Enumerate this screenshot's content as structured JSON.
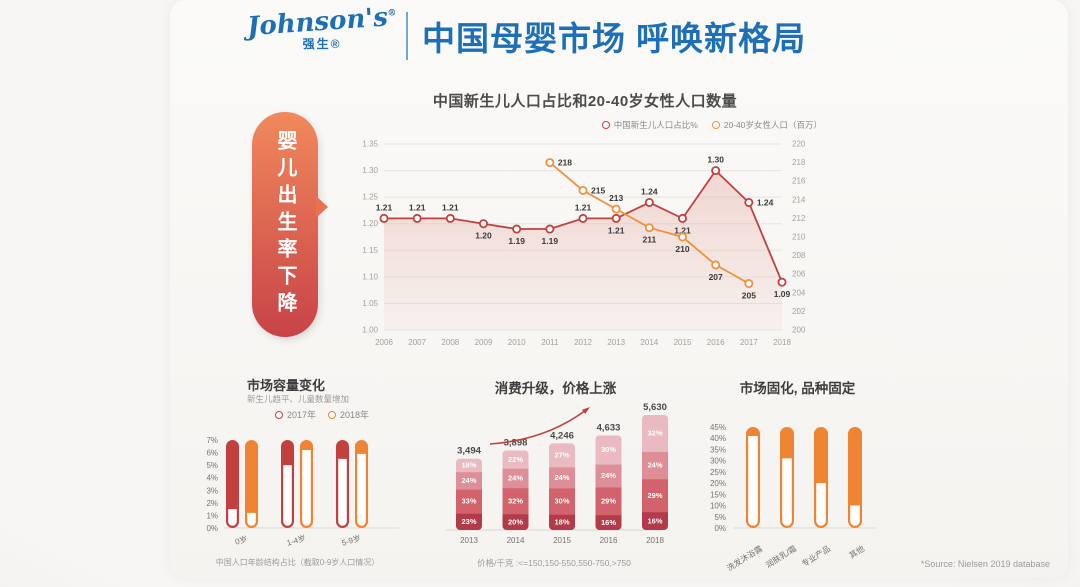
{
  "header": {
    "logo_script": "Johnson's",
    "logo_registered": "®",
    "logo_sub": "强生®",
    "title": "中国母婴市场 呼唤新格局"
  },
  "banner": {
    "text": "婴儿出生率下降"
  },
  "colors": {
    "brand_blue": "#1d70b7",
    "red": "#c2413f",
    "orange": "#ef8432",
    "orange_line": "#f0913c",
    "banner_top": "#f1895c",
    "banner_bottom": "#c84348"
  },
  "chart_data": [
    {
      "type": "line",
      "title": "中国新生儿人口占比和20-40岁女性人口数量",
      "legend": [
        {
          "label": "中国新生儿人口占比%",
          "color": "#c2413f"
        },
        {
          "label": "20-40岁女性人口（百万）",
          "color": "#f0913c"
        }
      ],
      "x": [
        "2006",
        "2007",
        "2008",
        "2009",
        "2010",
        "2011",
        "2012",
        "2013",
        "2014",
        "2015",
        "2016",
        "2017",
        "2018"
      ],
      "series": [
        {
          "name": "中国新生儿人口占比%",
          "axis": "left",
          "color": "#c2413f",
          "area": true,
          "values": [
            1.21,
            1.21,
            1.21,
            1.2,
            1.19,
            1.19,
            1.21,
            1.21,
            1.24,
            1.21,
            1.3,
            1.24,
            1.09
          ],
          "labels": [
            "1.21",
            "1.21",
            "1.21",
            "1.20",
            "1.19",
            "1.19",
            "1.21",
            "1.21",
            "1.24",
            "1.21",
            "1.30",
            "1.24",
            "1.09"
          ],
          "label_side": [
            "above",
            "above",
            "above",
            "below",
            "below",
            "below",
            "above",
            "below",
            "above",
            "below",
            "above",
            "right",
            "below"
          ]
        },
        {
          "name": "20-40岁女性人口（百万）",
          "axis": "right",
          "color": "#f0913c",
          "area": false,
          "values": [
            null,
            null,
            null,
            null,
            null,
            218,
            215,
            213,
            211,
            210,
            207,
            205,
            null
          ],
          "labels": [
            null,
            null,
            null,
            null,
            null,
            "218",
            "215",
            "213",
            "211",
            "210",
            "207",
            "205",
            null
          ],
          "label_side": [
            null,
            null,
            null,
            null,
            null,
            "right",
            "right",
            "above",
            "below",
            "below",
            "below",
            "below",
            null
          ]
        }
      ],
      "left_axis": {
        "min": 1.0,
        "max": 1.35,
        "ticks": [
          "1.35",
          "1.30",
          "1.25",
          "1.20",
          "1.15",
          "1.10",
          "1.05",
          "1.00"
        ]
      },
      "right_axis": {
        "min": 200,
        "max": 220,
        "ticks": [
          "220",
          "218",
          "216",
          "214",
          "212",
          "210",
          "208",
          "206",
          "204",
          "202",
          "200"
        ]
      },
      "grid": true,
      "legend_position": "top-right"
    },
    {
      "type": "bar",
      "style": "hollow-pill",
      "title": "市场容量变化",
      "subtitle": "新生儿趋平、儿童数量增加",
      "legend": [
        {
          "label": "2017年",
          "color": "#c2413f"
        },
        {
          "label": "2018年",
          "color": "#ef8432"
        }
      ],
      "categories": [
        "0岁",
        "1-4岁",
        "5-9岁"
      ],
      "series": [
        {
          "name": "2017年",
          "color": "#c2413f",
          "values": [
            1.5,
            5.0,
            5.5
          ]
        },
        {
          "name": "2018年",
          "color": "#ef8432",
          "values": [
            1.2,
            6.2,
            5.9
          ]
        }
      ],
      "ylim": [
        0,
        7
      ],
      "yticks": [
        "7%",
        "6%",
        "5%",
        "4%",
        "3%",
        "2%",
        "1%",
        "0%"
      ],
      "caption": "中国人口年龄结构占比（截取0-9岁人口情况）"
    },
    {
      "type": "stacked-bar",
      "title": "消费升级，价格上涨",
      "categories": [
        "2013",
        "2014",
        "2015",
        "2016",
        "2018"
      ],
      "totals": [
        "3,494",
        "3,898",
        "4,246",
        "4,633",
        "5,630"
      ],
      "total_values": [
        3494,
        3898,
        4246,
        4633,
        5630
      ],
      "segments_bottom_to_top": [
        [
          23,
          33,
          24,
          18
        ],
        [
          20,
          32,
          24,
          22
        ],
        [
          18,
          30,
          24,
          27
        ],
        [
          16,
          29,
          24,
          30
        ],
        [
          16,
          29,
          24,
          32
        ]
      ],
      "segment_labels": [
        [
          "23%",
          "33%",
          "24%",
          "18%"
        ],
        [
          "20%",
          "32%",
          "24%",
          "22%"
        ],
        [
          "18%",
          "30%",
          "24%",
          "27%"
        ],
        [
          "16%",
          "29%",
          "24%",
          "30%"
        ],
        [
          "16%",
          "29%",
          "24%",
          "32%"
        ]
      ],
      "segment_colors": [
        "#b23a49",
        "#d2626c",
        "#dd8e96",
        "#e9bac0"
      ],
      "price_arrow_color": "#c2413f",
      "caption": "价格/千克 :<=150,150-550,550-750,>750"
    },
    {
      "type": "bar",
      "style": "hollow-pill",
      "title": "市场固化, 品种固定",
      "categories": [
        "洗发沐浴露",
        "润肤乳/霜",
        "专业产品",
        "其他"
      ],
      "values": [
        41,
        31,
        20,
        10
      ],
      "color": "#ef8432",
      "ylim": [
        0,
        45
      ],
      "yticks": [
        "45%",
        "40%",
        "35%",
        "30%",
        "25%",
        "20%",
        "15%",
        "10%",
        "5%",
        "0%"
      ]
    }
  ],
  "footer": {
    "source": "*Source: Nielsen 2019 database"
  }
}
